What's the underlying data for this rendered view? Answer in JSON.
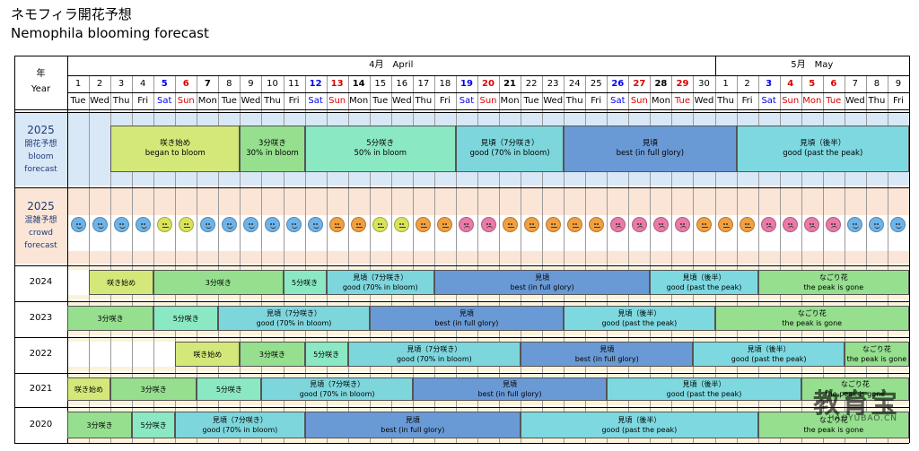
{
  "title_ja": "ネモフィラ開花予想",
  "title_en": "Nemophila blooming forecast",
  "header": {
    "year_label_ja": "年",
    "year_label_en": "Year",
    "months": [
      {
        "label": "4月　April",
        "start": 0,
        "end": 30
      },
      {
        "label": "5月　May",
        "start": 30,
        "end": 39
      }
    ],
    "days": [
      {
        "d": "1",
        "w": "Tue",
        "c": "n"
      },
      {
        "d": "2",
        "w": "Wed",
        "c": "n"
      },
      {
        "d": "3",
        "w": "Thu",
        "c": "n"
      },
      {
        "d": "4",
        "w": "Fri",
        "c": "n"
      },
      {
        "d": "5",
        "w": "Sat",
        "c": "sat"
      },
      {
        "d": "6",
        "w": "Sun",
        "c": "sun"
      },
      {
        "d": "7",
        "w": "Mon",
        "c": "n"
      },
      {
        "d": "8",
        "w": "Tue",
        "c": "n"
      },
      {
        "d": "9",
        "w": "Wed",
        "c": "n"
      },
      {
        "d": "10",
        "w": "Thu",
        "c": "n"
      },
      {
        "d": "11",
        "w": "Fri",
        "c": "n"
      },
      {
        "d": "12",
        "w": "Sat",
        "c": "sat"
      },
      {
        "d": "13",
        "w": "Sun",
        "c": "sun"
      },
      {
        "d": "14",
        "w": "Mon",
        "c": "n"
      },
      {
        "d": "15",
        "w": "Tue",
        "c": "n"
      },
      {
        "d": "16",
        "w": "Wed",
        "c": "n"
      },
      {
        "d": "17",
        "w": "Thu",
        "c": "n"
      },
      {
        "d": "18",
        "w": "Fri",
        "c": "n"
      },
      {
        "d": "19",
        "w": "Sat",
        "c": "sat"
      },
      {
        "d": "20",
        "w": "Sun",
        "c": "sun"
      },
      {
        "d": "21",
        "w": "Mon",
        "c": "n"
      },
      {
        "d": "22",
        "w": "Tue",
        "c": "n"
      },
      {
        "d": "23",
        "w": "Wed",
        "c": "n"
      },
      {
        "d": "24",
        "w": "Thu",
        "c": "n"
      },
      {
        "d": "25",
        "w": "Fri",
        "c": "n"
      },
      {
        "d": "26",
        "w": "Sat",
        "c": "sat"
      },
      {
        "d": "27",
        "w": "Sun",
        "c": "sun"
      },
      {
        "d": "28",
        "w": "Mon",
        "c": "n"
      },
      {
        "d": "29",
        "w": "Tue",
        "c": "sun"
      },
      {
        "d": "30",
        "w": "Wed",
        "c": "n"
      },
      {
        "d": "1",
        "w": "Thu",
        "c": "n"
      },
      {
        "d": "2",
        "w": "Fri",
        "c": "n"
      },
      {
        "d": "3",
        "w": "Sat",
        "c": "sat"
      },
      {
        "d": "4",
        "w": "Sun",
        "c": "sun"
      },
      {
        "d": "5",
        "w": "Mon",
        "c": "sun"
      },
      {
        "d": "6",
        "w": "Tue",
        "c": "sun"
      },
      {
        "d": "7",
        "w": "Wed",
        "c": "n"
      },
      {
        "d": "8",
        "w": "Thu",
        "c": "n"
      },
      {
        "d": "9",
        "w": "Fri",
        "c": "n"
      }
    ]
  },
  "colors": {
    "sat": "#0000ee",
    "sun": "#dd0000",
    "began": "#d4e87a",
    "p30": "#95df8f",
    "p50": "#8ae8c2",
    "good": "#7ed6dd",
    "best": "#6a9ad6",
    "past": "#7dd8e0",
    "gone": "#95df8f",
    "blue_face": "#6fb4e8",
    "yellow_face": "#d8e35a",
    "orange_face": "#f0a040",
    "pink_face": "#ea7aa8",
    "bg_forecast": "#d9e8f6",
    "bg_crowd": "#fbe5d6"
  },
  "forecast": {
    "year": "2025",
    "label_ja": "開花予想",
    "label_en_1": "bloom",
    "label_en_2": "forecast",
    "bands": [
      {
        "ja": "咲き始め",
        "en": "began to bloom",
        "start": 2,
        "end": 8,
        "color": "began"
      },
      {
        "ja": "3分咲き",
        "en": "30% in bloom",
        "start": 8,
        "end": 11,
        "color": "p30"
      },
      {
        "ja": "5分咲き",
        "en": "50% in bloom",
        "start": 11,
        "end": 18,
        "color": "p50"
      },
      {
        "ja": "見頃（7分咲き）",
        "en": "good (70% in bloom)",
        "start": 18,
        "end": 23,
        "color": "good"
      },
      {
        "ja": "見頃",
        "en": "best (in full glory)",
        "start": 23,
        "end": 31,
        "color": "best"
      },
      {
        "ja": "見頃（後半）",
        "en": "good (past the peak)",
        "start": 31,
        "end": 39,
        "color": "past"
      }
    ]
  },
  "crowd": {
    "year": "2025",
    "label_ja": "混雑予想",
    "label_en_1": "crowd",
    "label_en_2": "forecast",
    "faces": [
      "blue",
      "blue",
      "blue",
      "blue",
      "yellow",
      "yellow",
      "blue",
      "blue",
      "blue",
      "blue",
      "blue",
      "blue",
      "orange",
      "orange",
      "yellow",
      "yellow",
      "orange",
      "orange",
      "pink",
      "pink",
      "orange",
      "orange",
      "orange",
      "orange",
      "orange",
      "pink",
      "pink",
      "pink",
      "pink",
      "orange",
      "orange",
      "orange",
      "pink",
      "pink",
      "pink",
      "pink",
      "blue",
      "blue",
      "blue"
    ]
  },
  "history": [
    {
      "year": "2024",
      "bands": [
        {
          "ja": "咲き始め",
          "en": "",
          "start": 1,
          "end": 4,
          "color": "began"
        },
        {
          "ja": "3分咲き",
          "en": "",
          "start": 4,
          "end": 10,
          "color": "p30"
        },
        {
          "ja": "5分咲き",
          "en": "",
          "start": 10,
          "end": 12,
          "color": "p50"
        },
        {
          "ja": "見頃（7分咲き）",
          "en": "good (70% in bloom)",
          "start": 12,
          "end": 17,
          "color": "good"
        },
        {
          "ja": "見頃",
          "en": "best (in full glory)",
          "start": 17,
          "end": 27,
          "color": "best"
        },
        {
          "ja": "見頃（後半）",
          "en": "good (past the peak)",
          "start": 27,
          "end": 32,
          "color": "past"
        },
        {
          "ja": "なごり花",
          "en": "the peak is gone",
          "start": 32,
          "end": 39,
          "color": "gone"
        }
      ]
    },
    {
      "year": "2023",
      "bands": [
        {
          "ja": "3分咲き",
          "en": "",
          "start": 0,
          "end": 4,
          "color": "p30"
        },
        {
          "ja": "5分咲き",
          "en": "",
          "start": 4,
          "end": 7,
          "color": "p50"
        },
        {
          "ja": "見頃（7分咲き）",
          "en": "good (70% in bloom)",
          "start": 7,
          "end": 14,
          "color": "good"
        },
        {
          "ja": "見頃",
          "en": "best (in full glory)",
          "start": 14,
          "end": 23,
          "color": "best"
        },
        {
          "ja": "見頃（後半）",
          "en": "good (past the peak)",
          "start": 23,
          "end": 30,
          "color": "past"
        },
        {
          "ja": "なごり花",
          "en": "the peak is gone",
          "start": 30,
          "end": 39,
          "color": "gone"
        }
      ]
    },
    {
      "year": "2022",
      "bands": [
        {
          "ja": "咲き始め",
          "en": "",
          "start": 5,
          "end": 8,
          "color": "began"
        },
        {
          "ja": "3分咲き",
          "en": "",
          "start": 8,
          "end": 11,
          "color": "p30"
        },
        {
          "ja": "5分咲き",
          "en": "",
          "start": 11,
          "end": 13,
          "color": "p50"
        },
        {
          "ja": "見頃（7分咲き）",
          "en": "good (70% in bloom)",
          "start": 13,
          "end": 21,
          "color": "good"
        },
        {
          "ja": "見頃",
          "en": "best (in full glory)",
          "start": 21,
          "end": 29,
          "color": "best"
        },
        {
          "ja": "見頃（後半）",
          "en": "good (past the peak)",
          "start": 29,
          "end": 36,
          "color": "past"
        },
        {
          "ja": "なごり花",
          "en": "the peak is gone",
          "start": 36,
          "end": 39,
          "color": "gone"
        }
      ]
    },
    {
      "year": "2021",
      "bands": [
        {
          "ja": "咲き始め",
          "en": "",
          "start": 0,
          "end": 2,
          "color": "began"
        },
        {
          "ja": "3分咲き",
          "en": "",
          "start": 2,
          "end": 6,
          "color": "p30"
        },
        {
          "ja": "5分咲き",
          "en": "",
          "start": 6,
          "end": 9,
          "color": "p50"
        },
        {
          "ja": "見頃（7分咲き）",
          "en": "good (70% in bloom)",
          "start": 9,
          "end": 16,
          "color": "good"
        },
        {
          "ja": "見頃",
          "en": "best (in full glory)",
          "start": 16,
          "end": 25,
          "color": "best"
        },
        {
          "ja": "見頃（後半）",
          "en": "good (past the peak)",
          "start": 25,
          "end": 34,
          "color": "past"
        },
        {
          "ja": "なごり花",
          "en": "the peak is gone",
          "start": 34,
          "end": 39,
          "color": "gone"
        }
      ]
    },
    {
      "year": "2020",
      "bands": [
        {
          "ja": "3分咲き",
          "en": "",
          "start": 0,
          "end": 3,
          "color": "p30"
        },
        {
          "ja": "5分咲き",
          "en": "",
          "start": 3,
          "end": 5,
          "color": "p50"
        },
        {
          "ja": "見頃（7分咲き）",
          "en": "good (70% in bloom)",
          "start": 5,
          "end": 11,
          "color": "good"
        },
        {
          "ja": "見頃",
          "en": "best (in full glory)",
          "start": 11,
          "end": 21,
          "color": "best"
        },
        {
          "ja": "見頃（後半）",
          "en": "good (past the peak)",
          "start": 21,
          "end": 32,
          "color": "past"
        },
        {
          "ja": "なごり花",
          "en": "the peak is gone",
          "start": 32,
          "end": 39,
          "color": "gone"
        }
      ]
    }
  ],
  "watermark": {
    "big": "教育宝",
    "small": "JIAOYUBAO.CN"
  }
}
